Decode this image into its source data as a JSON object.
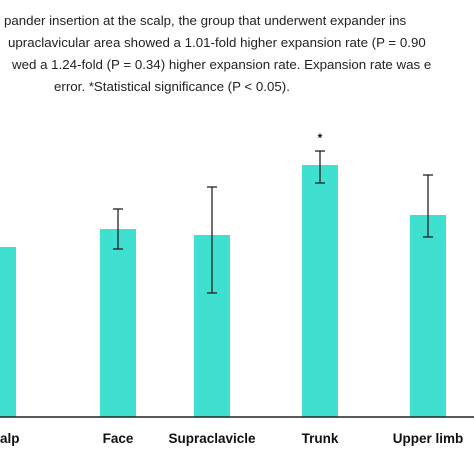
{
  "caption": {
    "lines": [
      "pander insertion at the scalp, the group that underwent expander ins",
      "upraclavicular area showed a 1.01-fold higher expansion rate (P = 0.90",
      "wed a 1.24-fold (P = 0.34) higher expansion rate. Expansion rate was e",
      "error. *Statistical significance (P < 0.05)."
    ]
  },
  "colors": {
    "bar": "#40e0d0",
    "axis": "#222222",
    "error_bar": "#222222"
  },
  "chart_data": {
    "type": "bar",
    "categories": [
      "alp",
      "Face",
      "Supraclavicle",
      "Trunk",
      "Upper limb"
    ],
    "values": [
      0.85,
      0.94,
      0.91,
      1.26,
      1.01
    ],
    "error": [
      [
        null,
        null
      ],
      [
        0.84,
        1.04
      ],
      [
        0.62,
        1.15
      ],
      [
        1.17,
        1.33
      ],
      [
        0.9,
        1.21
      ]
    ],
    "annotations": [
      {
        "category": "Trunk",
        "text": "*"
      }
    ],
    "ylim": [
      0,
      1.5
    ],
    "grid": false,
    "legend": "none",
    "title": "",
    "xlabel": "",
    "ylabel": ""
  }
}
